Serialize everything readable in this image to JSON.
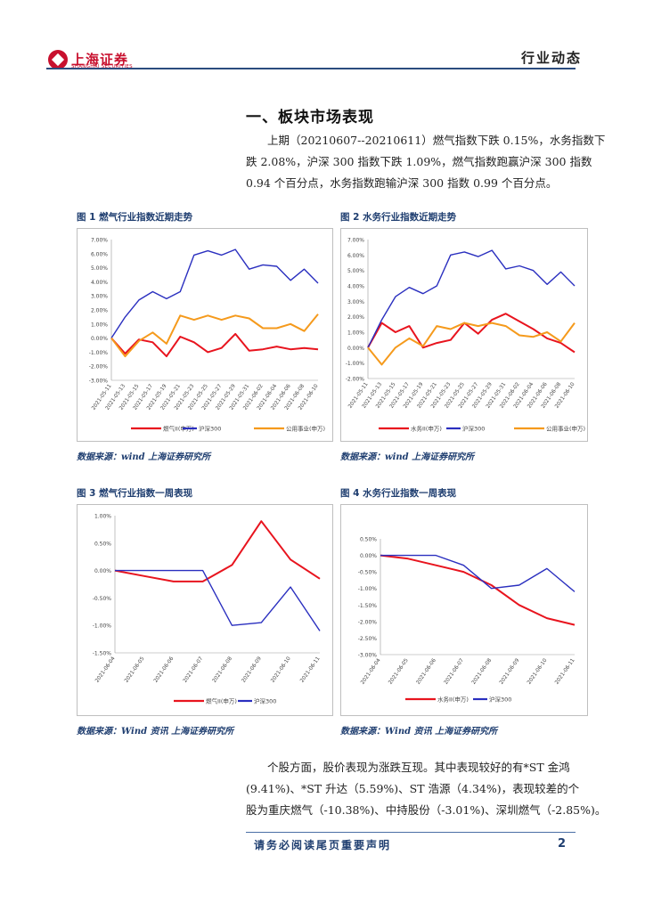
{
  "header": {
    "logo_cn": "上海证券",
    "logo_en": "SHANGHAI SECURITIES",
    "section": "行业动态"
  },
  "section_title": "一、板块市场表现",
  "intro_lines": [
    "上期（20210607--20210611）燃气指数下跌 0.15%，水务指数下",
    "跌 2.08%，沪深 300 指数下跌 1.09%，燃气指数跑赢沪深 300 指数",
    "0.94 个百分点，水务指数跑输沪深 300 指数 0.99 个百分点。"
  ],
  "figures": {
    "fig1_title": "图 1 燃气行业指数近期走势",
    "fig2_title": "图 2 水务行业指数近期走势",
    "fig3_title": "图  3  燃气行业指数一周表现",
    "fig4_title": "图  4  水务行业指数一周表现",
    "src1": "数据来源：wind 上海证券研究所",
    "src2": "数据来源：wind 上海证券研究所",
    "src3": "数据来源：Wind 资讯  上海证券研究所",
    "src4": "数据来源：Wind 资讯  上海证券研究所"
  },
  "chart_data": [
    {
      "type": "line",
      "ylim": [
        -3,
        7
      ],
      "ytick_labels": [
        "7.00%",
        "6.00%",
        "5.00%",
        "4.00%",
        "3.00%",
        "2.00%",
        "1.00%",
        "0.00%",
        "-1.00%",
        "-2.00%",
        "-3.00%"
      ],
      "x": [
        "2021-05-11",
        "2021-05-13",
        "2021-05-15",
        "2021-05-17",
        "2021-05-19",
        "2021-05-21",
        "2021-05-23",
        "2021-05-25",
        "2021-05-27",
        "2021-05-29",
        "2021-05-31",
        "2021-06-02",
        "2021-06-04",
        "2021-06-06",
        "2021-06-08",
        "2021-06-10"
      ],
      "series": [
        {
          "name": "燃气II(申万)",
          "color": "#e8141e",
          "values": [
            0.0,
            -1.1,
            -0.1,
            -0.3,
            -1.3,
            0.1,
            -0.3,
            -1.0,
            -0.7,
            0.3,
            -0.9,
            -0.8,
            -0.6,
            -0.8,
            -0.7,
            -0.8
          ]
        },
        {
          "name": "沪深300",
          "color": "#2a2fbf",
          "values": [
            0.0,
            1.5,
            2.7,
            3.3,
            2.8,
            3.3,
            5.9,
            6.2,
            5.9,
            6.3,
            4.9,
            5.2,
            5.1,
            4.1,
            4.9,
            3.9
          ]
        },
        {
          "name": "公用事业(申万)",
          "color": "#f59a1c",
          "values": [
            0.0,
            -1.3,
            -0.2,
            0.4,
            -0.4,
            1.6,
            1.3,
            1.6,
            1.3,
            1.6,
            1.4,
            0.7,
            0.7,
            1.0,
            0.5,
            1.7
          ]
        }
      ]
    },
    {
      "type": "line",
      "ylim": [
        -2,
        7
      ],
      "ytick_labels": [
        "7.00%",
        "6.00%",
        "5.00%",
        "4.00%",
        "3.00%",
        "2.00%",
        "1.00%",
        "0.00%",
        "-1.00%",
        "-2.00%"
      ],
      "x": [
        "2021-05-11",
        "2021-05-13",
        "2021-05-15",
        "2021-05-17",
        "2021-05-19",
        "2021-05-21",
        "2021-05-23",
        "2021-05-25",
        "2021-05-27",
        "2021-05-29",
        "2021-05-31",
        "2021-06-02",
        "2021-06-04",
        "2021-06-06",
        "2021-06-08",
        "2021-06-10"
      ],
      "series": [
        {
          "name": "水务II(申万)",
          "color": "#e8141e",
          "values": [
            0.0,
            1.6,
            1.0,
            1.4,
            0.0,
            0.3,
            0.5,
            1.6,
            0.9,
            1.8,
            2.2,
            1.7,
            1.2,
            0.6,
            0.3,
            -0.3
          ]
        },
        {
          "name": "沪深300",
          "color": "#2a2fbf",
          "values": [
            0.0,
            1.8,
            3.3,
            3.9,
            3.5,
            4.0,
            6.0,
            6.2,
            5.9,
            6.3,
            5.1,
            5.3,
            5.0,
            4.1,
            4.9,
            4.0
          ]
        },
        {
          "name": "公用事业(申万)",
          "color": "#f59a1c",
          "values": [
            0.0,
            -1.1,
            0.0,
            0.6,
            0.1,
            1.4,
            1.2,
            1.6,
            1.4,
            1.6,
            1.4,
            0.8,
            0.7,
            1.0,
            0.4,
            1.6
          ]
        }
      ]
    },
    {
      "type": "line",
      "ylim": [
        -1.5,
        1
      ],
      "ytick_labels": [
        "1.00%",
        "0.50%",
        "0.00%",
        "-0.50%",
        "-1.00%",
        "-1.50%"
      ],
      "x": [
        "2021-06-04",
        "2021-06-05",
        "2021-06-06",
        "2021-06-07",
        "2021-06-08",
        "2021-06-09",
        "2021-06-10",
        "2021-06-11"
      ],
      "series": [
        {
          "name": "燃气II(申万)",
          "color": "#e8141e",
          "values": [
            0.0,
            -0.1,
            -0.2,
            -0.2,
            0.1,
            0.9,
            0.2,
            -0.15
          ]
        },
        {
          "name": "沪深300",
          "color": "#2a2fbf",
          "values": [
            0.0,
            0.0,
            0.0,
            0.0,
            -1.0,
            -0.95,
            -0.3,
            -1.1
          ]
        }
      ]
    },
    {
      "type": "line",
      "ylim": [
        -3,
        0.5
      ],
      "ytick_labels": [
        "0.50%",
        "0.00%",
        "-0.50%",
        "-1.00%",
        "-1.50%",
        "-2.00%",
        "-2.50%",
        "-3.00%"
      ],
      "x": [
        "2021-06-04",
        "2021-06-05",
        "2021-06-06",
        "2021-06-07",
        "2021-06-08",
        "2021-06-09",
        "2021-06-10",
        "2021-06-11"
      ],
      "series": [
        {
          "name": "水务II(申万)",
          "color": "#e8141e",
          "values": [
            0.0,
            -0.1,
            -0.3,
            -0.5,
            -0.9,
            -1.5,
            -1.9,
            -2.1
          ]
        },
        {
          "name": "沪深300",
          "color": "#2a2fbf",
          "values": [
            0.0,
            0.0,
            0.0,
            -0.3,
            -1.0,
            -0.9,
            -0.4,
            -1.1
          ]
        }
      ]
    }
  ],
  "para2_lines": [
    "个股方面，股价表现为涨跌互现。其中表现较好的有*ST 金鸿",
    "(9.41%)、*ST 升达（5.59%)、ST 浩源（4.34%)，表现较差的个",
    "股为重庆燃气（-10.38%)、中持股份（-3.01%)、深圳燃气（-2.85%)。"
  ],
  "footer": {
    "disclaimer": "请务必阅读尾页重要声明",
    "page": "2"
  }
}
